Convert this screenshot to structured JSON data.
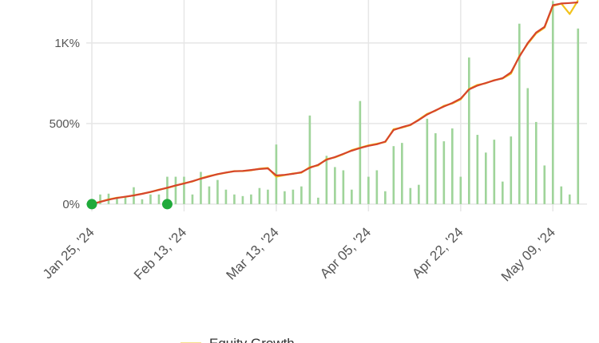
{
  "chart_data": {
    "type": "line",
    "ylim": [
      -45,
      1267
    ],
    "yticks": [
      {
        "value": 0,
        "label": "0%"
      },
      {
        "value": 500,
        "label": "500%"
      },
      {
        "value": 1000,
        "label": "1K%"
      }
    ],
    "xlim": [
      0,
      58.5
    ],
    "xticks": [
      {
        "value": 0,
        "label": "Jan 25, '24"
      },
      {
        "value": 11,
        "label": "Feb 13, '24"
      },
      {
        "value": 22,
        "label": "Mar 13, '24"
      },
      {
        "value": 33,
        "label": "Apr 05, '24"
      },
      {
        "value": 44,
        "label": "Apr 22, '24"
      },
      {
        "value": 55,
        "label": "May 09, '24"
      }
    ],
    "grid": true,
    "series": [
      {
        "name": "Equity Growth",
        "color": "#f2c21b",
        "values": [
          0,
          15,
          30,
          40,
          45,
          55,
          65,
          75,
          90,
          100,
          115,
          130,
          140,
          160,
          175,
          185,
          195,
          205,
          205,
          210,
          220,
          225,
          170,
          180,
          190,
          195,
          230,
          240,
          280,
          290,
          310,
          335,
          350,
          365,
          375,
          385,
          465,
          475,
          490,
          525,
          560,
          580,
          610,
          625,
          650,
          715,
          740,
          750,
          770,
          780,
          810,
          920,
          995,
          1060,
          1095,
          1230,
          1245,
          1180,
          1265
        ]
      },
      {
        "color": "#d6452b",
        "values": [
          0,
          14,
          28,
          38,
          46,
          54,
          64,
          76,
          88,
          102,
          116,
          128,
          142,
          158,
          172,
          186,
          196,
          204,
          206,
          212,
          218,
          222,
          178,
          182,
          188,
          198,
          226,
          244,
          276,
          292,
          312,
          332,
          348,
          362,
          372,
          388,
          460,
          478,
          492,
          522,
          556,
          582,
          606,
          628,
          655,
          712,
          736,
          752,
          768,
          782,
          818,
          915,
          1000,
          1065,
          1100,
          1235,
          1245,
          1248,
          1252
        ]
      },
      {
        "color": "#9fd49a",
        "kind": "bar",
        "values": [
          20,
          60,
          65,
          40,
          50,
          105,
          30,
          60,
          60,
          170,
          170,
          170,
          60,
          200,
          110,
          150,
          90,
          60,
          50,
          60,
          100,
          90,
          370,
          80,
          90,
          110,
          550,
          40,
          300,
          230,
          210,
          90,
          640,
          170,
          210,
          80,
          360,
          380,
          100,
          120,
          530,
          440,
          390,
          470,
          170,
          910,
          430,
          320,
          400,
          140,
          420,
          1120,
          720,
          510,
          240,
          1260,
          110,
          60,
          1090
        ]
      }
    ],
    "markers": {
      "color": "#1faa3a",
      "x": [
        0,
        9
      ],
      "values": [
        0,
        0
      ]
    }
  }
}
